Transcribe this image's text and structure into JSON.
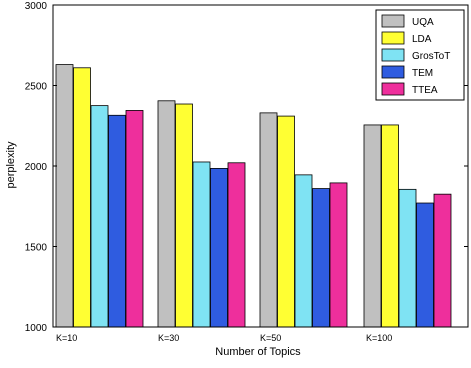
{
  "chart_data": {
    "type": "bar",
    "title": "",
    "xlabel": "Number of Topics",
    "ylabel": "perplexity",
    "categories": [
      "K=10",
      "K=30",
      "K=50",
      "K=100"
    ],
    "ylim": [
      1000,
      3000
    ],
    "yticks": [
      1000,
      1500,
      2000,
      2500,
      3000
    ],
    "grid": false,
    "legend_position": "top-right",
    "series": [
      {
        "name": "UQA",
        "color": "#c0c0c0",
        "values": [
          2630,
          2405,
          2330,
          2255
        ]
      },
      {
        "name": "LDA",
        "color": "#ffff33",
        "values": [
          2610,
          2385,
          2310,
          2255
        ]
      },
      {
        "name": "GrosToT",
        "color": "#7fe3f3",
        "values": [
          2375,
          2025,
          1945,
          1855
        ]
      },
      {
        "name": "TEM",
        "color": "#2f5ce0",
        "values": [
          2315,
          1985,
          1860,
          1770
        ]
      },
      {
        "name": "TTEA",
        "color": "#ee2f9c",
        "values": [
          2345,
          2020,
          1895,
          1825
        ]
      }
    ]
  }
}
